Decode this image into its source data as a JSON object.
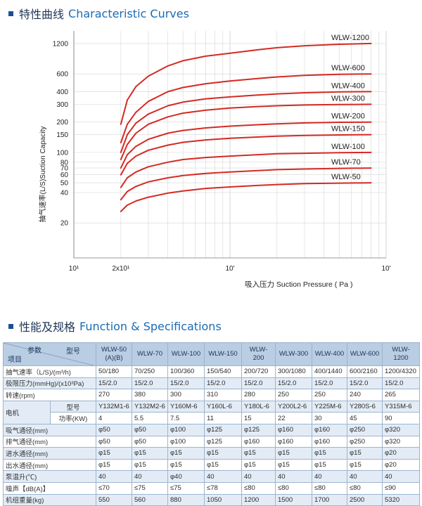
{
  "curves_section": {
    "title_cn": "特性曲线",
    "title_en": "Characteristic  Curves"
  },
  "spec_section": {
    "title_cn": "性能及规格",
    "title_en": "Function & Specifications"
  },
  "chart_data": {
    "type": "line",
    "x_scale": "log",
    "y_scale": "log",
    "xlabel": "吸入压力 Suction Pressure ( Pa )",
    "ylabel": "抽气速率(L/S)Suction Capacity",
    "x_ticks": [
      {
        "value": 100,
        "label": "10¹"
      },
      {
        "value": 200,
        "label": "2x10¹"
      },
      {
        "value": 1000,
        "label": "10'"
      },
      {
        "value": 10000,
        "label": "10'"
      }
    ],
    "y_ticks": [
      1200,
      600,
      400,
      300,
      200,
      150,
      100,
      80,
      70,
      60,
      50,
      40,
      20
    ],
    "xlim": [
      100,
      10000
    ],
    "ylim": [
      9,
      1600
    ],
    "grid": true,
    "series": [
      {
        "name": "WLW-1200",
        "color": "#d42a22",
        "x": [
          200,
          220,
          250,
          300,
          400,
          500,
          700,
          1000,
          1500,
          2000,
          3000,
          5000,
          8000
        ],
        "values": [
          190,
          330,
          450,
          570,
          720,
          810,
          900,
          960,
          1040,
          1090,
          1140,
          1180,
          1200
        ]
      },
      {
        "name": "WLW-600",
        "color": "#d42a22",
        "x": [
          200,
          220,
          250,
          300,
          400,
          500,
          700,
          1000,
          1500,
          2000,
          3000,
          5000,
          8000
        ],
        "values": [
          125,
          190,
          250,
          320,
          400,
          440,
          480,
          510,
          540,
          560,
          580,
          595,
          600
        ]
      },
      {
        "name": "WLW-400",
        "color": "#d42a22",
        "x": [
          200,
          220,
          250,
          300,
          400,
          500,
          700,
          1000,
          1500,
          2000,
          3000,
          5000,
          8000
        ],
        "values": [
          100,
          150,
          195,
          240,
          290,
          315,
          340,
          355,
          370,
          380,
          390,
          398,
          400
        ]
      },
      {
        "name": "WLW-300",
        "color": "#d42a22",
        "x": [
          200,
          220,
          250,
          300,
          400,
          500,
          700,
          1000,
          1500,
          2000,
          3000,
          5000,
          8000
        ],
        "values": [
          85,
          120,
          155,
          190,
          225,
          245,
          262,
          275,
          285,
          290,
          295,
          298,
          300
        ]
      },
      {
        "name": "WLW-200",
        "color": "#d42a22",
        "x": [
          200,
          220,
          250,
          300,
          400,
          500,
          700,
          1000,
          1500,
          2000,
          3000,
          5000,
          8000
        ],
        "values": [
          70,
          95,
          115,
          135,
          155,
          165,
          175,
          182,
          188,
          192,
          196,
          199,
          200
        ]
      },
      {
        "name": "WLW-150",
        "color": "#d42a22",
        "x": [
          200,
          220,
          250,
          300,
          400,
          500,
          700,
          1000,
          1500,
          2000,
          3000,
          5000,
          8000
        ],
        "values": [
          60,
          78,
          92,
          105,
          118,
          126,
          133,
          138,
          142,
          145,
          147,
          149,
          150
        ]
      },
      {
        "name": "WLW-100",
        "color": "#d42a22",
        "x": [
          200,
          220,
          250,
          300,
          400,
          500,
          700,
          1000,
          1500,
          2000,
          3000,
          5000,
          8000
        ],
        "values": [
          45,
          56,
          64,
          72,
          80,
          85,
          89,
          92,
          95,
          97,
          98,
          99.5,
          100
        ]
      },
      {
        "name": "WLW-70",
        "color": "#d42a22",
        "x": [
          200,
          220,
          250,
          300,
          400,
          500,
          700,
          1000,
          1500,
          2000,
          3000,
          5000,
          8000
        ],
        "values": [
          34,
          41,
          46,
          51,
          56,
          59,
          62,
          64,
          66,
          67.5,
          68.5,
          69.5,
          70
        ]
      },
      {
        "name": "WLW-50",
        "color": "#d42a22",
        "x": [
          200,
          220,
          250,
          300,
          400,
          500,
          700,
          1000,
          1500,
          2000,
          3000,
          5000,
          8000
        ],
        "values": [
          26,
          30,
          33,
          36,
          39.5,
          41.5,
          44,
          45.5,
          47,
          48,
          49,
          49.6,
          50
        ]
      }
    ]
  },
  "spec_table": {
    "header_param": "参数",
    "header_model": "型号",
    "header_item": "项目",
    "models": [
      "WLW-50\n(A)(B)",
      "WLW-70",
      "WLW-100",
      "WLW-150",
      "WLW-200",
      "WLW-300",
      "WLW-400",
      "WLW-600",
      "WLW-1200"
    ],
    "motor_label": "电机",
    "rows": [
      {
        "label": "抽气速率（L/S)/(m³/h)",
        "cells": [
          "50/180",
          "70/250",
          "100/360",
          "150/540",
          "200/720",
          "300/1080",
          "400/1440",
          "600/2160",
          "1200/4320"
        ]
      },
      {
        "label": "极限压力(mmHg)/(x10³Pa)",
        "cells": [
          "15/2.0",
          "15/2.0",
          "15/2.0",
          "15/2.0",
          "15/2.0",
          "15/2.0",
          "15/2.0",
          "15/2.0",
          "15/2.0"
        ]
      },
      {
        "label": "转速(rpm)",
        "cells": [
          "270",
          "380",
          "300",
          "310",
          "280",
          "250",
          "250",
          "240",
          "265"
        ]
      },
      {
        "label": "型号",
        "motor": true,
        "cells": [
          "Y132M1-6",
          "Y132M2-6",
          "Y160M-6",
          "Y160L-6",
          "Y180L-6",
          "Y200L2-6",
          "Y225M-6",
          "Y280S-6",
          "Y315M-6"
        ]
      },
      {
        "label": "功率(KW)",
        "motor": true,
        "cells": [
          "4",
          "5.5",
          "7.5",
          "11",
          "15",
          "22",
          "30",
          "45",
          "90"
        ]
      },
      {
        "label": "吸气通径(mm)",
        "cells": [
          "φ50",
          "φ50",
          "φ100",
          "φ125",
          "φ125",
          "φ160",
          "φ160",
          "φ250",
          "φ320"
        ]
      },
      {
        "label": "排气通径(mm)",
        "cells": [
          "φ50",
          "φ50",
          "φ100",
          "φ125",
          "φ160",
          "φ160",
          "φ160",
          "φ250",
          "φ320"
        ]
      },
      {
        "label": "进水通径(mm)",
        "cells": [
          "φ15",
          "φ15",
          "φ15",
          "φ15",
          "φ15",
          "φ15",
          "φ15",
          "φ15",
          "φ20"
        ]
      },
      {
        "label": "出水通径(mm)",
        "cells": [
          "φ15",
          "φ15",
          "φ15",
          "φ15",
          "φ15",
          "φ15",
          "φ15",
          "φ15",
          "φ20"
        ]
      },
      {
        "label": "泵温升(℃)",
        "cells": [
          "40",
          "40",
          "φ40",
          "40",
          "40",
          "40",
          "40",
          "40",
          "40"
        ]
      },
      {
        "label": "噪声【dB(A)】",
        "cells": [
          "≤70",
          "≤75",
          "≤75",
          "≤78",
          "≤80",
          "≤80",
          "≤80",
          "≤80",
          "≤90"
        ]
      },
      {
        "label": "机组重量(kg)",
        "cells": [
          "550",
          "560",
          "880",
          "1050",
          "1200",
          "1500",
          "1700",
          "2500",
          "5320"
        ]
      }
    ]
  }
}
